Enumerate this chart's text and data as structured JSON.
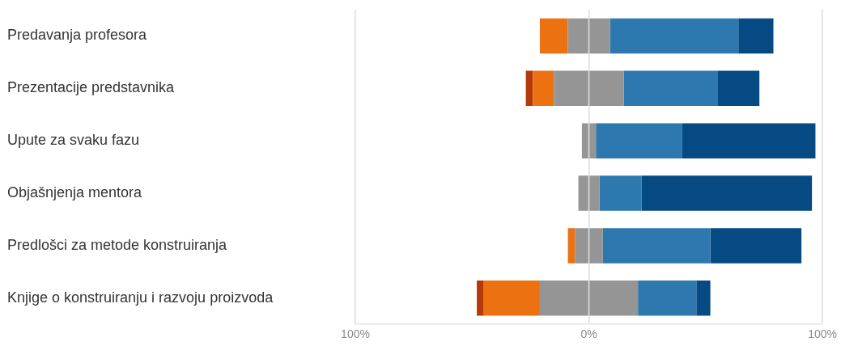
{
  "chart_data": {
    "type": "bar",
    "orientation": "horizontal",
    "stacked": true,
    "categories": [
      "Predavanja profesora",
      "Prezentacije predstavnika",
      "Upute za svaku fazu",
      "Objašnjenja mentora",
      "Predlošci za metode konstruiranja",
      "Knjige o konstruiranju i razvoju proizvoda"
    ],
    "series": [
      {
        "color": "#959595",
        "values": [
          -9,
          -15,
          -3,
          -4.5,
          -6,
          -21
        ]
      },
      {
        "color": "#ec7211",
        "values": [
          -12,
          -9,
          null,
          null,
          -3,
          -24
        ]
      },
      {
        "color": "#b5390a",
        "values": [
          null,
          -3,
          null,
          null,
          null,
          -3
        ]
      },
      {
        "color": "#959595",
        "values": [
          9,
          15,
          3,
          4.5,
          6,
          21
        ]
      },
      {
        "color": "#2e78b0",
        "values": [
          55,
          40,
          37,
          18,
          46,
          25
        ]
      },
      {
        "color": "#064a84",
        "values": [
          15,
          18,
          57,
          73,
          39,
          6
        ]
      }
    ],
    "xlim": [
      -100,
      100
    ],
    "xticks": [
      {
        "value": -100,
        "label": "100%"
      },
      {
        "value": 0,
        "label": "0%"
      },
      {
        "value": 100,
        "label": "100%"
      }
    ],
    "grid": "x",
    "legend": false
  }
}
